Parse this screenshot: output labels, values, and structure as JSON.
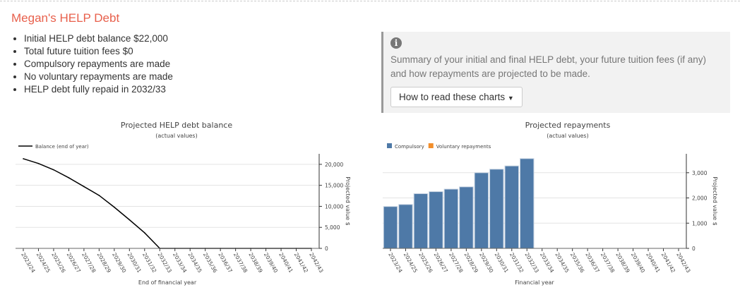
{
  "title": "Megan's HELP Debt",
  "bullets": [
    "Initial HELP debt balance $22,000",
    "Total future tuition fees $0",
    "Compulsory repayments are made",
    "No voluntary repayments are made",
    "HELP debt fully repaid in 2032/33"
  ],
  "info": {
    "icon": "info-circle-icon",
    "text": "Summary of your initial and final HELP debt, your future tuition fees (if any) and how repayments are projected to be made.",
    "button": "How to read these charts"
  },
  "chart_data": [
    {
      "type": "line",
      "title": "Projected HELP debt balance",
      "subtitle": "(actual values)",
      "xlabel": "End of financial year",
      "ylabel": "Projected value $",
      "ylim": [
        0,
        22500
      ],
      "yticks": [
        0,
        5000,
        10000,
        15000,
        20000
      ],
      "grid": true,
      "legend": "top-left",
      "categories": [
        "2023/24",
        "2024/25",
        "2025/26",
        "2026/27",
        "2027/28",
        "2028/29",
        "2029/30",
        "2030/31",
        "2031/32",
        "2032/33",
        "2033/34",
        "2034/35",
        "2035/36",
        "2036/37",
        "2037/38",
        "2038/39",
        "2039/40",
        "2040/41",
        "2041/42",
        "2042/43"
      ],
      "series": [
        {
          "name": "Balance (end of year)",
          "color": "#000000",
          "values": [
            21330,
            20200,
            18700,
            16800,
            14700,
            12600,
            9800,
            6800,
            3700,
            0,
            0,
            0,
            0,
            0,
            0,
            0,
            0,
            0,
            0,
            0
          ]
        }
      ]
    },
    {
      "type": "bar",
      "title": "Projected repayments",
      "subtitle": "(actual values)",
      "xlabel": "Financial year",
      "ylabel": "Projected value $",
      "ylim": [
        0,
        3750
      ],
      "yticks": [
        0,
        1000,
        2000,
        3000
      ],
      "grid": true,
      "legend": "top-left",
      "categories": [
        "2023/24",
        "2024/25",
        "2025/26",
        "2026/27",
        "2027/28",
        "2028/29",
        "2029/30",
        "2030/31",
        "2031/32",
        "2032/33",
        "2033/34",
        "2034/35",
        "2035/36",
        "2036/37",
        "2037/38",
        "2038/39",
        "2039/40",
        "2040/41",
        "2041/42",
        "2042/43"
      ],
      "series": [
        {
          "name": "Compulsory",
          "color": "#4e79a7",
          "values": [
            1660,
            1740,
            2170,
            2250,
            2350,
            2440,
            3000,
            3140,
            3270,
            3560,
            0,
            0,
            0,
            0,
            0,
            0,
            0,
            0,
            0,
            0
          ]
        },
        {
          "name": "Voluntary repayments",
          "color": "#f28e2b",
          "values": [
            0,
            0,
            0,
            0,
            0,
            0,
            0,
            0,
            0,
            0,
            0,
            0,
            0,
            0,
            0,
            0,
            0,
            0,
            0,
            0
          ]
        }
      ]
    }
  ]
}
